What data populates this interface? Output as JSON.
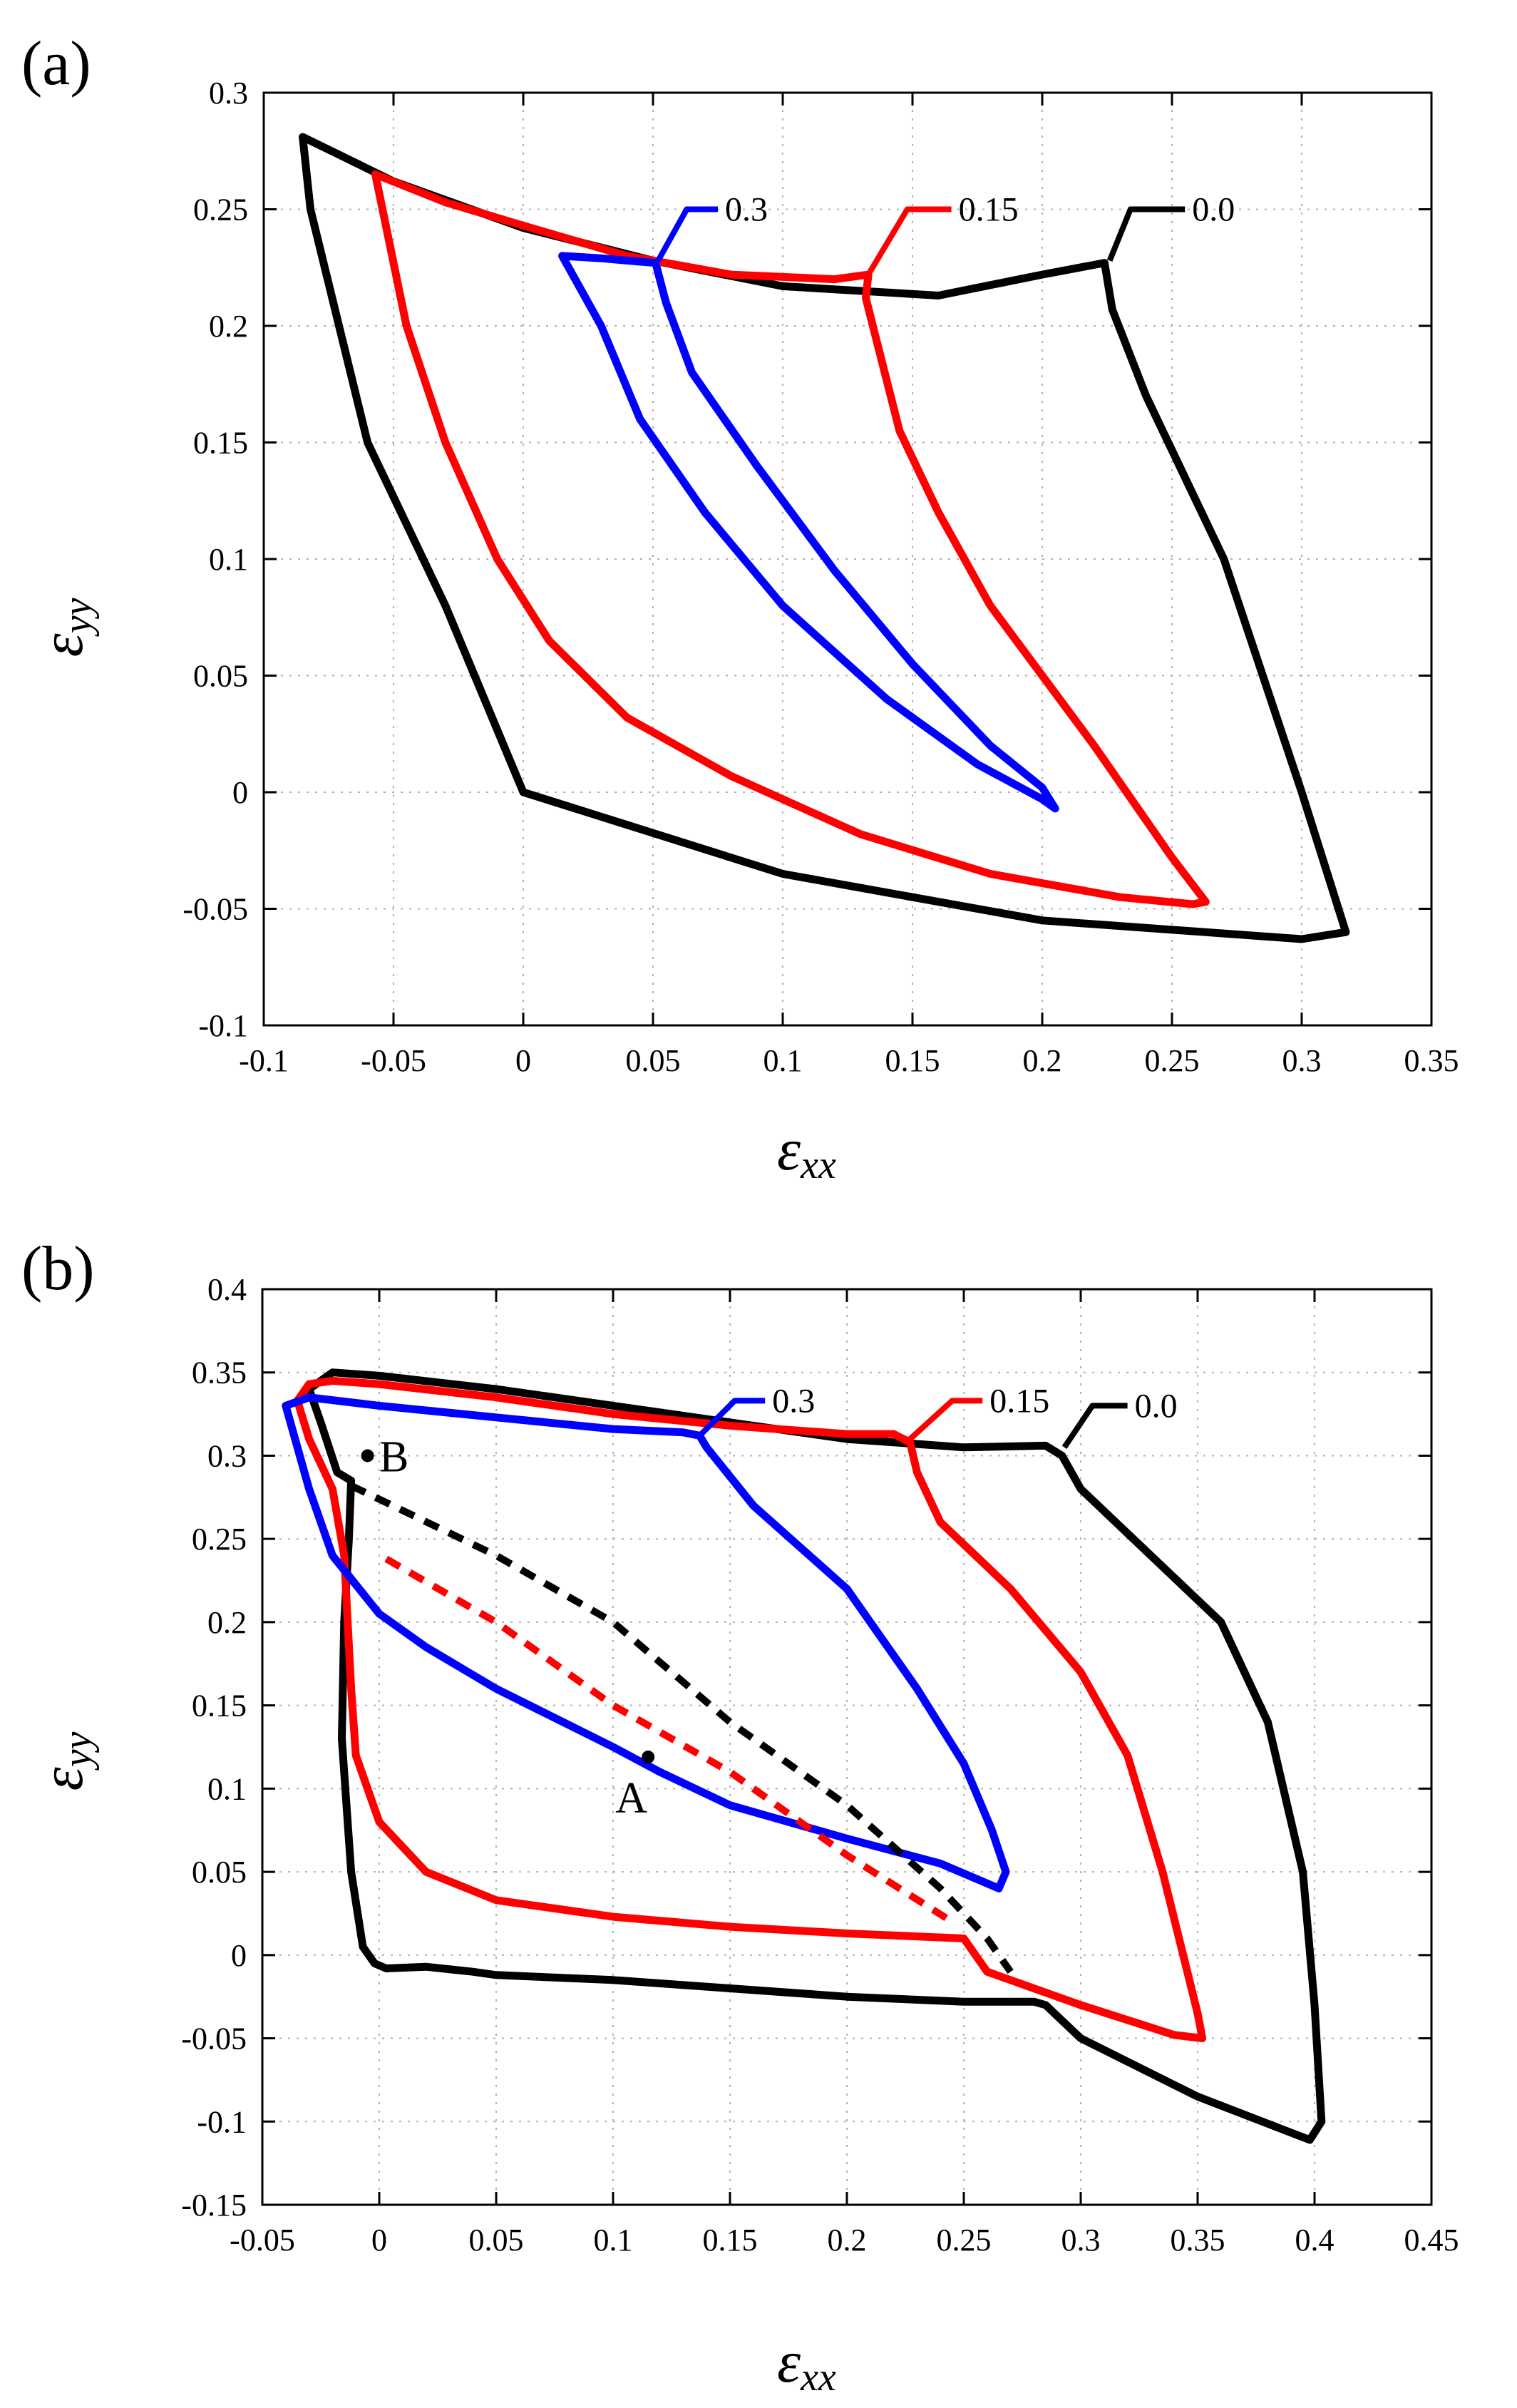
{
  "chart_data": [
    {
      "type": "line",
      "panel_label": "(a)",
      "xlabel": "ε",
      "xlabel_sub": "xx",
      "ylabel": "ε",
      "ylabel_sub": "yy",
      "xlim": [
        -0.1,
        0.35
      ],
      "ylim": [
        -0.1,
        0.3
      ],
      "xticks": [
        -0.1,
        -0.05,
        0,
        0.05,
        0.1,
        0.15,
        0.2,
        0.25,
        0.3,
        0.35
      ],
      "xtick_labels": [
        "-0.1",
        "-0.05",
        "0",
        "0.05",
        "0.1",
        "0.15",
        "0.2",
        "0.25",
        "0.3",
        "0.35"
      ],
      "yticks": [
        -0.1,
        -0.05,
        0,
        0.05,
        0.1,
        0.15,
        0.2,
        0.25,
        0.3
      ],
      "ytick_labels": [
        "-0.1",
        "-0.05",
        "0",
        "0.05",
        "0.1",
        "0.15",
        "0.2",
        "0.25",
        "0.3"
      ],
      "grid": true,
      "series": [
        {
          "name": "0.0",
          "color": "#000000",
          "dashed": false,
          "points": [
            [
              0,
              0
            ],
            [
              0.1,
              -0.035
            ],
            [
              0.2,
              -0.055
            ],
            [
              0.3,
              -0.063
            ],
            [
              0.317,
              -0.06
            ],
            [
              0.3,
              0.0
            ],
            [
              0.27,
              0.1
            ],
            [
              0.24,
              0.17
            ],
            [
              0.227,
              0.207
            ],
            [
              0.224,
              0.227
            ],
            [
              0.2,
              0.222
            ],
            [
              0.16,
              0.213
            ],
            [
              0.1,
              0.217
            ],
            [
              0.05,
              0.228
            ],
            [
              0.0,
              0.242
            ],
            [
              -0.05,
              0.262
            ],
            [
              -0.085,
              0.281
            ],
            [
              -0.082,
              0.25
            ],
            [
              -0.06,
              0.15
            ],
            [
              -0.03,
              0.08
            ],
            [
              0,
              0
            ]
          ]
        },
        {
          "name": "0.15",
          "color": "#ff0000",
          "dashed": false,
          "points": [
            [
              -0.057,
              0.265
            ],
            [
              -0.045,
              0.2
            ],
            [
              -0.03,
              0.15
            ],
            [
              -0.01,
              0.1
            ],
            [
              0.01,
              0.065
            ],
            [
              0.04,
              0.032
            ],
            [
              0.08,
              0.007
            ],
            [
              0.13,
              -0.018
            ],
            [
              0.18,
              -0.035
            ],
            [
              0.23,
              -0.045
            ],
            [
              0.258,
              -0.048
            ],
            [
              0.263,
              -0.047
            ],
            [
              0.25,
              -0.028
            ],
            [
              0.22,
              0.02
            ],
            [
              0.18,
              0.08
            ],
            [
              0.16,
              0.12
            ],
            [
              0.145,
              0.155
            ],
            [
              0.137,
              0.19
            ],
            [
              0.132,
              0.212
            ],
            [
              0.133,
              0.222
            ],
            [
              0.12,
              0.22
            ],
            [
              0.08,
              0.222
            ],
            [
              0.04,
              0.23
            ],
            [
              0.0,
              0.243
            ],
            [
              -0.03,
              0.253
            ],
            [
              -0.057,
              0.265
            ]
          ]
        },
        {
          "name": "0.3",
          "color": "#0000ff",
          "dashed": false,
          "points": [
            [
              0.015,
              0.23
            ],
            [
              0.03,
              0.2
            ],
            [
              0.045,
              0.16
            ],
            [
              0.07,
              0.12
            ],
            [
              0.1,
              0.08
            ],
            [
              0.14,
              0.04
            ],
            [
              0.175,
              0.012
            ],
            [
              0.2,
              -0.003
            ],
            [
              0.205,
              -0.007
            ],
            [
              0.2,
              0.002
            ],
            [
              0.18,
              0.02
            ],
            [
              0.15,
              0.055
            ],
            [
              0.12,
              0.095
            ],
            [
              0.09,
              0.14
            ],
            [
              0.065,
              0.18
            ],
            [
              0.055,
              0.21
            ],
            [
              0.051,
              0.227
            ],
            [
              0.04,
              0.228
            ],
            [
              0.03,
              0.229
            ],
            [
              0.015,
              0.23
            ]
          ]
        }
      ],
      "annotations": [
        {
          "label": "0.0",
          "color": "#000000",
          "anchor": [
            0.226,
            0.228
          ],
          "mid": [
            0.234,
            0.25
          ],
          "end": [
            0.255,
            0.25
          ]
        },
        {
          "label": "0.15",
          "color": "#ff0000",
          "anchor": [
            0.133,
            0.222
          ],
          "mid": [
            0.148,
            0.25
          ],
          "end": [
            0.165,
            0.25
          ]
        },
        {
          "label": "0.3",
          "color": "#0000ff",
          "anchor": [
            0.052,
            0.228
          ],
          "mid": [
            0.063,
            0.25
          ],
          "end": [
            0.075,
            0.25
          ]
        }
      ],
      "points_marked": []
    },
    {
      "type": "line",
      "panel_label": "(b)",
      "xlabel": "ε",
      "xlabel_sub": "xx",
      "ylabel": "ε",
      "ylabel_sub": "yy",
      "xlim": [
        -0.05,
        0.45
      ],
      "ylim": [
        -0.15,
        0.4
      ],
      "xticks": [
        -0.05,
        0,
        0.05,
        0.1,
        0.15,
        0.2,
        0.25,
        0.3,
        0.35,
        0.4,
        0.45
      ],
      "xtick_labels": [
        "-0.05",
        "0",
        "0.05",
        "0.1",
        "0.15",
        "0.2",
        "0.25",
        "0.3",
        "0.35",
        "0.4",
        "0.45"
      ],
      "yticks": [
        -0.15,
        -0.1,
        -0.05,
        0,
        0.05,
        0.1,
        0.15,
        0.2,
        0.25,
        0.3,
        0.35,
        0.4
      ],
      "ytick_labels": [
        "-0.15",
        "-0.1",
        "-0.05",
        "0",
        "0.05",
        "0.1",
        "0.15",
        "0.2",
        "0.25",
        "0.3",
        "0.35",
        "0.4"
      ],
      "grid": true,
      "series": [
        {
          "name": "0.0",
          "color": "#000000",
          "dashed": false,
          "points": [
            [
              -0.02,
              0.35
            ],
            [
              0.0,
              0.348
            ],
            [
              0.05,
              0.34
            ],
            [
              0.1,
              0.33
            ],
            [
              0.15,
              0.32
            ],
            [
              0.2,
              0.31
            ],
            [
              0.25,
              0.305
            ],
            [
              0.285,
              0.306
            ],
            [
              0.292,
              0.3
            ],
            [
              0.3,
              0.28
            ],
            [
              0.33,
              0.24
            ],
            [
              0.36,
              0.2
            ],
            [
              0.38,
              0.14
            ],
            [
              0.395,
              0.05
            ],
            [
              0.4,
              -0.03
            ],
            [
              0.403,
              -0.1
            ],
            [
              0.398,
              -0.111
            ],
            [
              0.35,
              -0.085
            ],
            [
              0.3,
              -0.05
            ],
            [
              0.285,
              -0.03
            ],
            [
              0.28,
              -0.028
            ],
            [
              0.25,
              -0.028
            ],
            [
              0.2,
              -0.025
            ],
            [
              0.15,
              -0.02
            ],
            [
              0.1,
              -0.015
            ],
            [
              0.05,
              -0.012
            ],
            [
              0.04,
              -0.01
            ],
            [
              0.02,
              -0.007
            ],
            [
              0.003,
              -0.008
            ],
            [
              -0.002,
              -0.005
            ],
            [
              -0.007,
              0.005
            ],
            [
              -0.012,
              0.05
            ],
            [
              -0.016,
              0.13
            ],
            [
              -0.015,
              0.2
            ],
            [
              -0.013,
              0.25
            ],
            [
              -0.012,
              0.285
            ],
            [
              -0.018,
              0.29
            ],
            [
              -0.025,
              0.32
            ],
            [
              -0.03,
              0.34
            ],
            [
              -0.02,
              0.35
            ]
          ]
        },
        {
          "name": "0.15",
          "color": "#ff0000",
          "dashed": false,
          "points": [
            [
              -0.035,
              0.333
            ],
            [
              -0.03,
              0.343
            ],
            [
              -0.02,
              0.345
            ],
            [
              0.0,
              0.343
            ],
            [
              0.05,
              0.335
            ],
            [
              0.1,
              0.325
            ],
            [
              0.15,
              0.318
            ],
            [
              0.2,
              0.313
            ],
            [
              0.22,
              0.313
            ],
            [
              0.227,
              0.308
            ],
            [
              0.23,
              0.29
            ],
            [
              0.24,
              0.26
            ],
            [
              0.27,
              0.22
            ],
            [
              0.3,
              0.17
            ],
            [
              0.32,
              0.12
            ],
            [
              0.335,
              0.05
            ],
            [
              0.35,
              -0.035
            ],
            [
              0.352,
              -0.05
            ],
            [
              0.34,
              -0.048
            ],
            [
              0.3,
              -0.03
            ],
            [
              0.26,
              -0.01
            ],
            [
              0.25,
              0.01
            ],
            [
              0.2,
              0.013
            ],
            [
              0.15,
              0.017
            ],
            [
              0.1,
              0.023
            ],
            [
              0.05,
              0.033
            ],
            [
              0.02,
              0.05
            ],
            [
              0.0,
              0.08
            ],
            [
              -0.01,
              0.12
            ],
            [
              -0.012,
              0.16
            ],
            [
              -0.015,
              0.24
            ],
            [
              -0.02,
              0.28
            ],
            [
              -0.03,
              0.31
            ],
            [
              -0.035,
              0.333
            ]
          ]
        },
        {
          "name": "0.3",
          "color": "#0000ff",
          "dashed": false,
          "points": [
            [
              -0.03,
              0.335
            ],
            [
              0.0,
              0.33
            ],
            [
              0.05,
              0.323
            ],
            [
              0.1,
              0.316
            ],
            [
              0.13,
              0.314
            ],
            [
              0.137,
              0.312
            ],
            [
              0.14,
              0.305
            ],
            [
              0.16,
              0.27
            ],
            [
              0.2,
              0.22
            ],
            [
              0.23,
              0.16
            ],
            [
              0.25,
              0.115
            ],
            [
              0.262,
              0.075
            ],
            [
              0.268,
              0.05
            ],
            [
              0.265,
              0.04
            ],
            [
              0.24,
              0.055
            ],
            [
              0.2,
              0.07
            ],
            [
              0.15,
              0.09
            ],
            [
              0.12,
              0.11
            ],
            [
              0.1,
              0.125
            ],
            [
              0.05,
              0.16
            ],
            [
              0.02,
              0.185
            ],
            [
              0.0,
              0.205
            ],
            [
              -0.02,
              0.24
            ],
            [
              -0.03,
              0.28
            ],
            [
              -0.04,
              0.33
            ],
            [
              -0.03,
              0.335
            ]
          ]
        },
        {
          "name": "dash-black",
          "color": "#000000",
          "dashed": true,
          "points": [
            [
              -0.012,
              0.282
            ],
            [
              0.05,
              0.24
            ],
            [
              0.1,
              0.2
            ],
            [
              0.15,
              0.14
            ],
            [
              0.2,
              0.09
            ],
            [
              0.24,
              0.04
            ],
            [
              0.26,
              0.01
            ],
            [
              0.27,
              -0.01
            ]
          ]
        },
        {
          "name": "dash-red",
          "color": "#ff0000",
          "dashed": true,
          "points": [
            [
              0.003,
              0.238
            ],
            [
              0.05,
              0.2
            ],
            [
              0.1,
              0.15
            ],
            [
              0.15,
              0.11
            ],
            [
              0.2,
              0.06
            ],
            [
              0.245,
              0.02
            ]
          ]
        }
      ],
      "annotations": [
        {
          "label": "0.0",
          "color": "#000000",
          "anchor": [
            0.293,
            0.305
          ],
          "mid": [
            0.305,
            0.33
          ],
          "end": [
            0.32,
            0.33
          ]
        },
        {
          "label": "0.15",
          "color": "#ff0000",
          "anchor": [
            0.227,
            0.31
          ],
          "mid": [
            0.245,
            0.333
          ],
          "end": [
            0.258,
            0.333
          ]
        },
        {
          "label": "0.3",
          "color": "#0000ff",
          "anchor": [
            0.137,
            0.312
          ],
          "mid": [
            0.152,
            0.333
          ],
          "end": [
            0.165,
            0.333
          ]
        }
      ],
      "points_marked": [
        {
          "label": "B",
          "x": -0.005,
          "y": 0.3,
          "dx": 0.005,
          "dy": 0.0
        },
        {
          "label": "A",
          "x": 0.115,
          "y": 0.119,
          "dx": -0.014,
          "dy": -0.024
        }
      ]
    }
  ]
}
